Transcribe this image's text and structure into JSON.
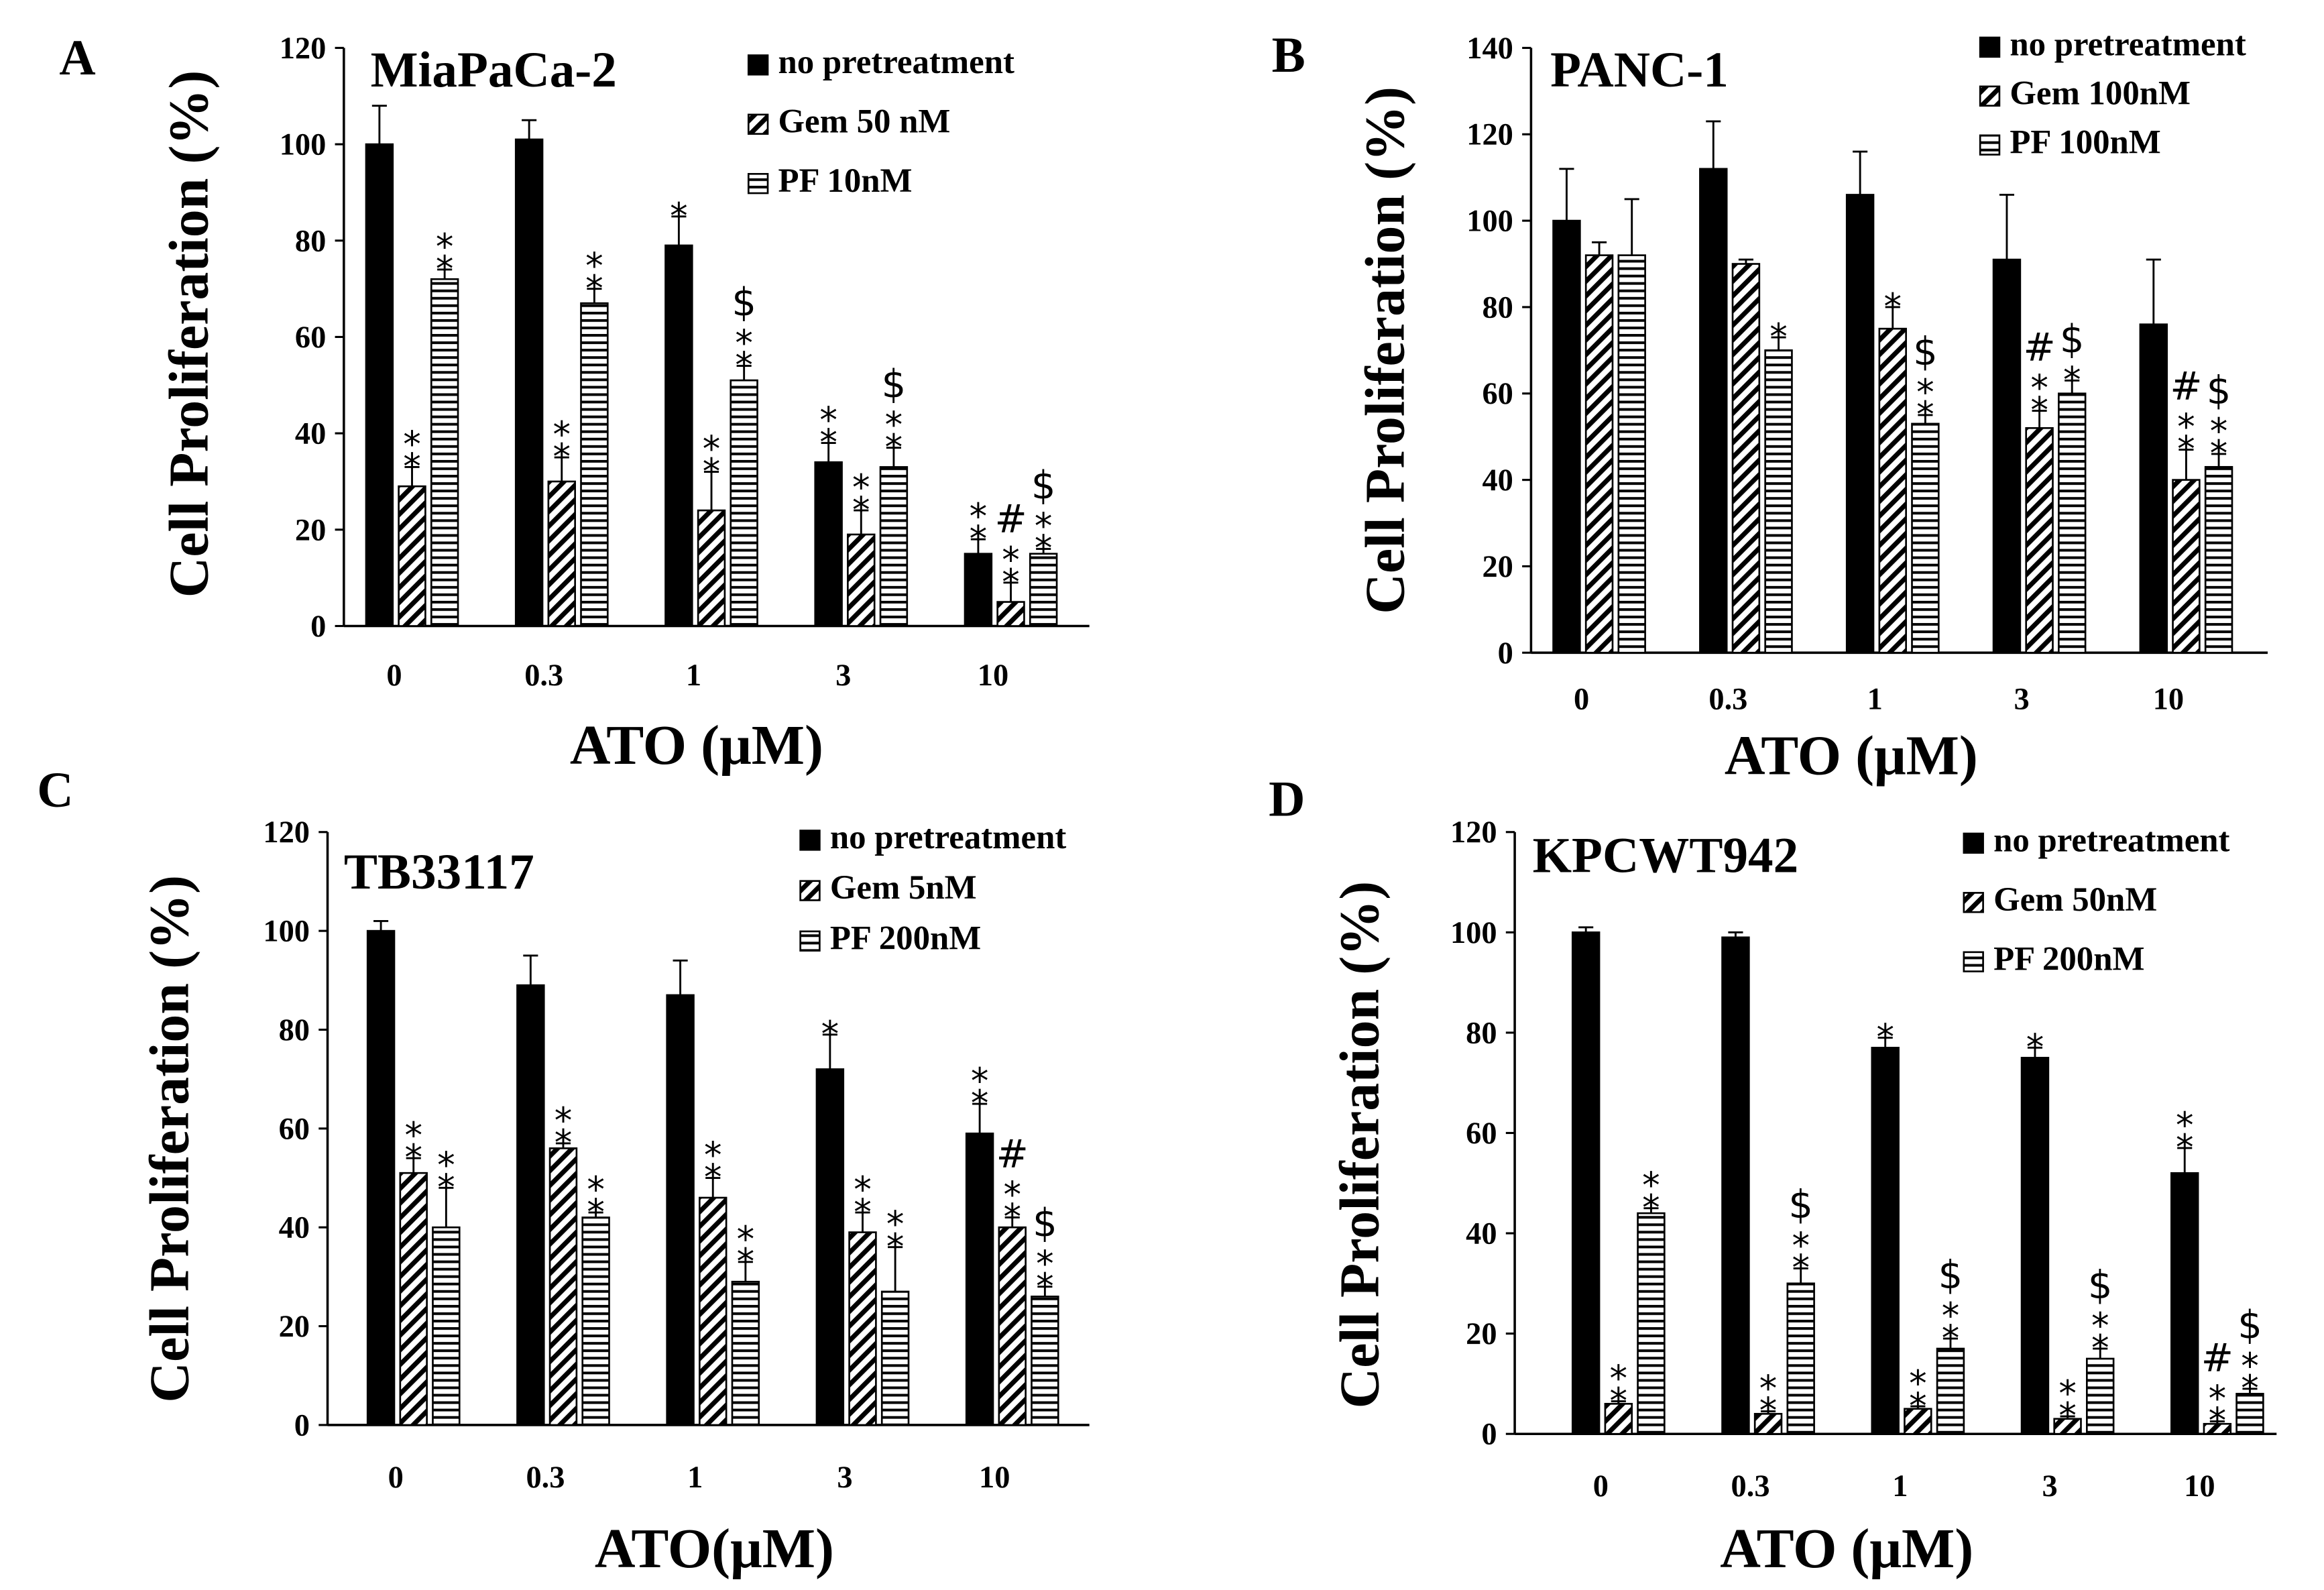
{
  "figure": {
    "panel_labels": [
      "A",
      "B",
      "C",
      "D"
    ]
  },
  "chart_data": [
    {
      "type": "bar",
      "panel": "A",
      "title": "MiaPaCa-2",
      "xlabel": "ATO (μM)",
      "ylabel": "Cell Proliferation (%)",
      "categories": [
        "0",
        "0.3",
        "1",
        "3",
        "10"
      ],
      "ylim": [
        0,
        120
      ],
      "yticks": [
        0,
        20,
        40,
        60,
        80,
        100,
        120
      ],
      "grid": false,
      "legend_position": "top-right",
      "series": [
        {
          "name": "no pretreatment",
          "pattern": "solid",
          "values": [
            100,
            101,
            79,
            34,
            15
          ],
          "errors": [
            8,
            4,
            6,
            4,
            3
          ],
          "annotations": [
            "",
            "",
            "*",
            "**",
            "**"
          ]
        },
        {
          "name": "Gem 50 nM",
          "pattern": "diagonal",
          "values": [
            29,
            30,
            24,
            19,
            5
          ],
          "errors": [
            4,
            5,
            8,
            5,
            4
          ],
          "annotations": [
            "**",
            "**",
            "**",
            "**",
            "#\n**"
          ]
        },
        {
          "name": "PF 10nM",
          "pattern": "horizontal",
          "values": [
            72,
            67,
            51,
            33,
            15
          ],
          "errors": [
            2,
            3,
            3,
            4,
            1
          ],
          "annotations": [
            "**",
            "**",
            "$\n**",
            "$\n**",
            "$\n**"
          ]
        }
      ]
    },
    {
      "type": "bar",
      "panel": "B",
      "title": "PANC-1",
      "xlabel": "ATO (μM)",
      "ylabel": "Cell Proliferation (%)",
      "categories": [
        "0",
        "0.3",
        "1",
        "3",
        "10"
      ],
      "ylim": [
        0,
        140
      ],
      "yticks": [
        0,
        20,
        40,
        60,
        80,
        100,
        120,
        140
      ],
      "grid": false,
      "legend_position": "top-right",
      "series": [
        {
          "name": "no pretreatment",
          "pattern": "solid",
          "values": [
            100,
            112,
            106,
            91,
            76
          ],
          "errors": [
            12,
            11,
            10,
            15,
            15
          ],
          "annotations": [
            "",
            "",
            "",
            "",
            ""
          ]
        },
        {
          "name": "Gem 100nM",
          "pattern": "diagonal",
          "values": [
            92,
            90,
            75,
            52,
            40
          ],
          "errors": [
            3,
            1,
            5,
            4,
            7
          ],
          "annotations": [
            "",
            "",
            "*",
            "#\n**",
            "#\n**"
          ]
        },
        {
          "name": "PF 100nM",
          "pattern": "horizontal",
          "values": [
            92,
            70,
            53,
            60,
            43
          ],
          "errors": [
            13,
            3,
            2,
            3,
            3
          ],
          "annotations": [
            "",
            "*",
            "$\n**",
            "$\n*",
            "$\n**"
          ]
        }
      ]
    },
    {
      "type": "bar",
      "panel": "C",
      "title": "TB33117",
      "xlabel": "ATO(μM)",
      "ylabel": "Cell Proliferation (%)",
      "categories": [
        "0",
        "0.3",
        "1",
        "3",
        "10"
      ],
      "ylim": [
        0,
        120
      ],
      "yticks": [
        0,
        20,
        40,
        60,
        80,
        100,
        120
      ],
      "grid": false,
      "legend_position": "top-right",
      "series": [
        {
          "name": "no pretreatment",
          "pattern": "solid",
          "values": [
            100,
            89,
            87,
            72,
            59
          ],
          "errors": [
            2,
            6,
            7,
            7,
            6
          ],
          "annotations": [
            "",
            "",
            "",
            "*",
            "**"
          ]
        },
        {
          "name": "Gem 5nM",
          "pattern": "diagonal",
          "values": [
            51,
            56,
            46,
            39,
            40
          ],
          "errors": [
            3,
            1,
            4,
            4,
            2
          ],
          "annotations": [
            "**",
            "**",
            "**",
            "**",
            "#\n**"
          ]
        },
        {
          "name": "PF 200nM",
          "pattern": "horizontal",
          "values": [
            40,
            42,
            29,
            27,
            26
          ],
          "errors": [
            8,
            1,
            4,
            9,
            2
          ],
          "annotations": [
            "**",
            "**",
            "**",
            "**",
            "$\n**"
          ]
        }
      ]
    },
    {
      "type": "bar",
      "panel": "D",
      "title": "KPCWT942",
      "xlabel": "ATO (μM)",
      "ylabel": "Cell Proliferation (%)",
      "categories": [
        "0",
        "0.3",
        "1",
        "3",
        "10"
      ],
      "ylim": [
        0,
        120
      ],
      "yticks": [
        0,
        20,
        40,
        60,
        80,
        100,
        120
      ],
      "grid": false,
      "legend_position": "top-right",
      "series": [
        {
          "name": "no pretreatment",
          "pattern": "solid",
          "values": [
            100,
            99,
            77,
            75,
            52
          ],
          "errors": [
            1,
            1,
            2,
            2,
            5
          ],
          "annotations": [
            "",
            "",
            "*",
            "*",
            "**"
          ]
        },
        {
          "name": "Gem 50nM",
          "pattern": "diagonal",
          "values": [
            6,
            4,
            5,
            3,
            2
          ],
          "errors": [
            0.5,
            0.5,
            0.5,
            0.5,
            0.5
          ],
          "annotations": [
            "**",
            "**",
            "**",
            "**",
            "#\n**"
          ]
        },
        {
          "name": "PF 200nM",
          "pattern": "horizontal",
          "values": [
            44,
            30,
            17,
            15,
            8
          ],
          "errors": [
            1,
            3,
            2,
            2,
            1
          ],
          "annotations": [
            "**",
            "$\n**",
            "$\n**",
            "$\n**",
            "$\n**"
          ]
        }
      ]
    }
  ]
}
